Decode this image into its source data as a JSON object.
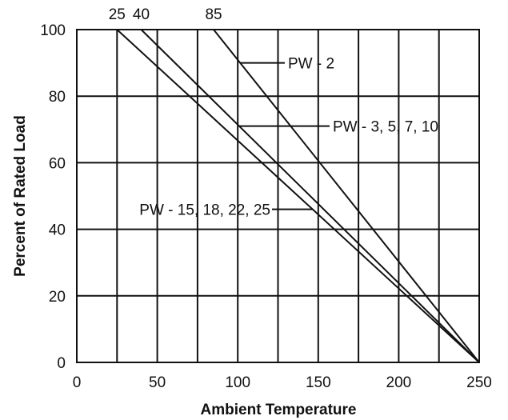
{
  "chart_data": {
    "type": "line",
    "xlabel": "Ambient Temperature",
    "ylabel": "Percent of Rated Load",
    "xlim": [
      0,
      250
    ],
    "ylim": [
      0,
      100
    ],
    "x_ticks": [
      "0",
      "50",
      "100",
      "150",
      "200",
      "250"
    ],
    "y_ticks": [
      "0",
      "20",
      "40",
      "60",
      "80",
      "100"
    ],
    "grid": true,
    "grid_x_step": 25,
    "grid_y_step": 20,
    "top_labels": [
      {
        "text": "25",
        "x": 25
      },
      {
        "text": "40",
        "x": 40
      },
      {
        "text": "85",
        "x": 85
      }
    ],
    "series": [
      {
        "name": "PW - 15, 18, 22, 25",
        "points": [
          [
            25,
            100
          ],
          [
            250,
            0
          ]
        ],
        "label_at_y": 46
      },
      {
        "name": "PW - 3, 5, 7, 10",
        "points": [
          [
            40,
            100
          ],
          [
            250,
            0
          ]
        ],
        "label_at_y": 71
      },
      {
        "name": "PW - 2",
        "points": [
          [
            85,
            100
          ],
          [
            250,
            0
          ]
        ],
        "label_at_y": 90
      }
    ]
  }
}
